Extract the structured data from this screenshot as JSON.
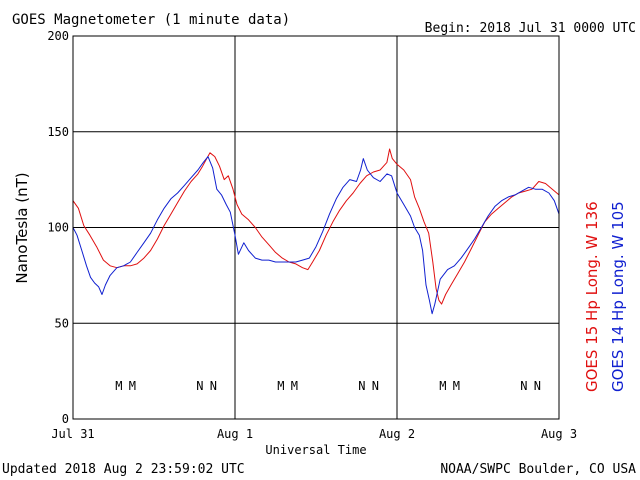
{
  "title": "GOES Magnetometer (1 minute data)",
  "begin_label": "Begin:  2018 Jul 31 0000 UTC",
  "updated_label": "Updated 2018 Aug  2 23:59:02 UTC",
  "credit_label": "NOAA/SWPC Boulder, CO USA",
  "chart_data": {
    "type": "line",
    "ylabel": "NanoTesla (nT)",
    "xlabel": "Universal Time",
    "ylim": [
      0,
      200
    ],
    "yticks": [
      0,
      50,
      100,
      150,
      200
    ],
    "xlim": [
      0,
      72
    ],
    "xticks": [
      {
        "x": 0,
        "label": "Jul 31"
      },
      {
        "x": 24,
        "label": "Aug 1"
      },
      {
        "x": 48,
        "label": "Aug 2"
      },
      {
        "x": 72,
        "label": "Aug 3"
      }
    ],
    "grid": true,
    "series": [
      {
        "name": "GOES 15 Hp  Long. W 136",
        "color": "#e01010",
        "points": [
          [
            0,
            114
          ],
          [
            0.8,
            110
          ],
          [
            1.6,
            101
          ],
          [
            2.5,
            96
          ],
          [
            3.5,
            90
          ],
          [
            4.5,
            83
          ],
          [
            5.5,
            80
          ],
          [
            6.5,
            79
          ],
          [
            7.5,
            80
          ],
          [
            8.5,
            80
          ],
          [
            9.5,
            81
          ],
          [
            10.5,
            84
          ],
          [
            11.5,
            88
          ],
          [
            12.5,
            94
          ],
          [
            13.5,
            101
          ],
          [
            14.5,
            107
          ],
          [
            15.5,
            113
          ],
          [
            16.5,
            119
          ],
          [
            17.5,
            124
          ],
          [
            18.5,
            128
          ],
          [
            19.2,
            132
          ],
          [
            19.8,
            136
          ],
          [
            20.3,
            139
          ],
          [
            21,
            137
          ],
          [
            21.7,
            132
          ],
          [
            22.4,
            125
          ],
          [
            23,
            127
          ],
          [
            23.7,
            120
          ],
          [
            24.3,
            112
          ],
          [
            25,
            107
          ],
          [
            26,
            104
          ],
          [
            27,
            100
          ],
          [
            28,
            95
          ],
          [
            29,
            91
          ],
          [
            30,
            87
          ],
          [
            31,
            84
          ],
          [
            32,
            82
          ],
          [
            33,
            81
          ],
          [
            34,
            79
          ],
          [
            34.8,
            78
          ],
          [
            35.5,
            82
          ],
          [
            36.5,
            88
          ],
          [
            37.5,
            96
          ],
          [
            38.5,
            103
          ],
          [
            39.5,
            109
          ],
          [
            40.5,
            114
          ],
          [
            41.5,
            118
          ],
          [
            42.5,
            123
          ],
          [
            43.5,
            127
          ],
          [
            44.5,
            129
          ],
          [
            45.5,
            130
          ],
          [
            46.5,
            134
          ],
          [
            46.9,
            141
          ],
          [
            47.3,
            136
          ],
          [
            48,
            133
          ],
          [
            49,
            130
          ],
          [
            50,
            125
          ],
          [
            50.6,
            116
          ],
          [
            51.3,
            110
          ],
          [
            52,
            103
          ],
          [
            52.7,
            97
          ],
          [
            53.3,
            82
          ],
          [
            53.8,
            68
          ],
          [
            54.2,
            62
          ],
          [
            54.6,
            60
          ],
          [
            55.2,
            65
          ],
          [
            56,
            70
          ],
          [
            57,
            76
          ],
          [
            58,
            82
          ],
          [
            59,
            89
          ],
          [
            60,
            96
          ],
          [
            61,
            103
          ],
          [
            62,
            107
          ],
          [
            63,
            110
          ],
          [
            64,
            113
          ],
          [
            65,
            116
          ],
          [
            66,
            118
          ],
          [
            67,
            119
          ],
          [
            68,
            120
          ],
          [
            69,
            124
          ],
          [
            70,
            123
          ],
          [
            71,
            120
          ],
          [
            72,
            117
          ]
        ]
      },
      {
        "name": "GOES 14 Hp  Long. W 105",
        "color": "#1020d0",
        "points": [
          [
            0,
            100
          ],
          [
            0.6,
            96
          ],
          [
            1.3,
            88
          ],
          [
            2,
            80
          ],
          [
            2.6,
            74
          ],
          [
            3.2,
            71
          ],
          [
            3.8,
            69
          ],
          [
            4.3,
            65
          ],
          [
            4.8,
            70
          ],
          [
            5.5,
            75
          ],
          [
            6.5,
            79
          ],
          [
            7.5,
            80
          ],
          [
            8.5,
            82
          ],
          [
            9.5,
            87
          ],
          [
            10.5,
            92
          ],
          [
            11.5,
            97
          ],
          [
            12.5,
            104
          ],
          [
            13.5,
            110
          ],
          [
            14.5,
            115
          ],
          [
            15.5,
            118
          ],
          [
            16.5,
            122
          ],
          [
            17.5,
            126
          ],
          [
            18.5,
            130
          ],
          [
            19.3,
            134
          ],
          [
            20,
            137
          ],
          [
            20.7,
            131
          ],
          [
            21.3,
            120
          ],
          [
            22,
            117
          ],
          [
            22.7,
            112
          ],
          [
            23.3,
            108
          ],
          [
            24,
            96
          ],
          [
            24.5,
            86
          ],
          [
            25.3,
            92
          ],
          [
            26,
            88
          ],
          [
            27,
            84
          ],
          [
            28,
            83
          ],
          [
            29,
            83
          ],
          [
            30,
            82
          ],
          [
            31,
            82
          ],
          [
            32,
            82
          ],
          [
            33,
            82
          ],
          [
            34,
            83
          ],
          [
            35,
            84
          ],
          [
            36,
            90
          ],
          [
            37,
            98
          ],
          [
            38,
            107
          ],
          [
            39,
            115
          ],
          [
            40,
            121
          ],
          [
            41,
            125
          ],
          [
            42,
            124
          ],
          [
            42.6,
            130
          ],
          [
            43,
            136
          ],
          [
            43.6,
            130
          ],
          [
            44.5,
            126
          ],
          [
            45.5,
            124
          ],
          [
            46.5,
            128
          ],
          [
            47.2,
            127
          ],
          [
            48,
            118
          ],
          [
            49,
            112
          ],
          [
            50,
            106
          ],
          [
            50.6,
            100
          ],
          [
            51.3,
            96
          ],
          [
            51.8,
            88
          ],
          [
            52.3,
            70
          ],
          [
            52.8,
            62
          ],
          [
            53.2,
            55
          ],
          [
            53.6,
            60
          ],
          [
            54.4,
            73
          ],
          [
            55.5,
            78
          ],
          [
            56.5,
            80
          ],
          [
            57.5,
            84
          ],
          [
            58.5,
            89
          ],
          [
            59.5,
            94
          ],
          [
            60.5,
            100
          ],
          [
            61.5,
            106
          ],
          [
            62.5,
            111
          ],
          [
            63.5,
            114
          ],
          [
            64.5,
            116
          ],
          [
            65.5,
            117
          ],
          [
            66.5,
            119
          ],
          [
            67.5,
            121
          ],
          [
            68.5,
            120
          ],
          [
            69.5,
            120
          ],
          [
            70.5,
            118
          ],
          [
            71.3,
            114
          ],
          [
            72,
            107
          ]
        ]
      }
    ],
    "markers": [
      {
        "x": 6.8,
        "label": "M",
        "color": "#1020d0"
      },
      {
        "x": 8.8,
        "label": "M",
        "color": "#e01010"
      },
      {
        "x": 18.8,
        "label": "N",
        "color": "#1020d0"
      },
      {
        "x": 20.8,
        "label": "N",
        "color": "#e01010"
      },
      {
        "x": 30.8,
        "label": "M",
        "color": "#1020d0"
      },
      {
        "x": 32.8,
        "label": "M",
        "color": "#e01010"
      },
      {
        "x": 42.8,
        "label": "N",
        "color": "#1020d0"
      },
      {
        "x": 44.8,
        "label": "N",
        "color": "#e01010"
      },
      {
        "x": 54.8,
        "label": "M",
        "color": "#1020d0"
      },
      {
        "x": 56.8,
        "label": "M",
        "color": "#e01010"
      },
      {
        "x": 66.8,
        "label": "N",
        "color": "#1020d0"
      },
      {
        "x": 68.8,
        "label": "N",
        "color": "#e01010"
      }
    ],
    "legend_position": "right-vertical"
  }
}
